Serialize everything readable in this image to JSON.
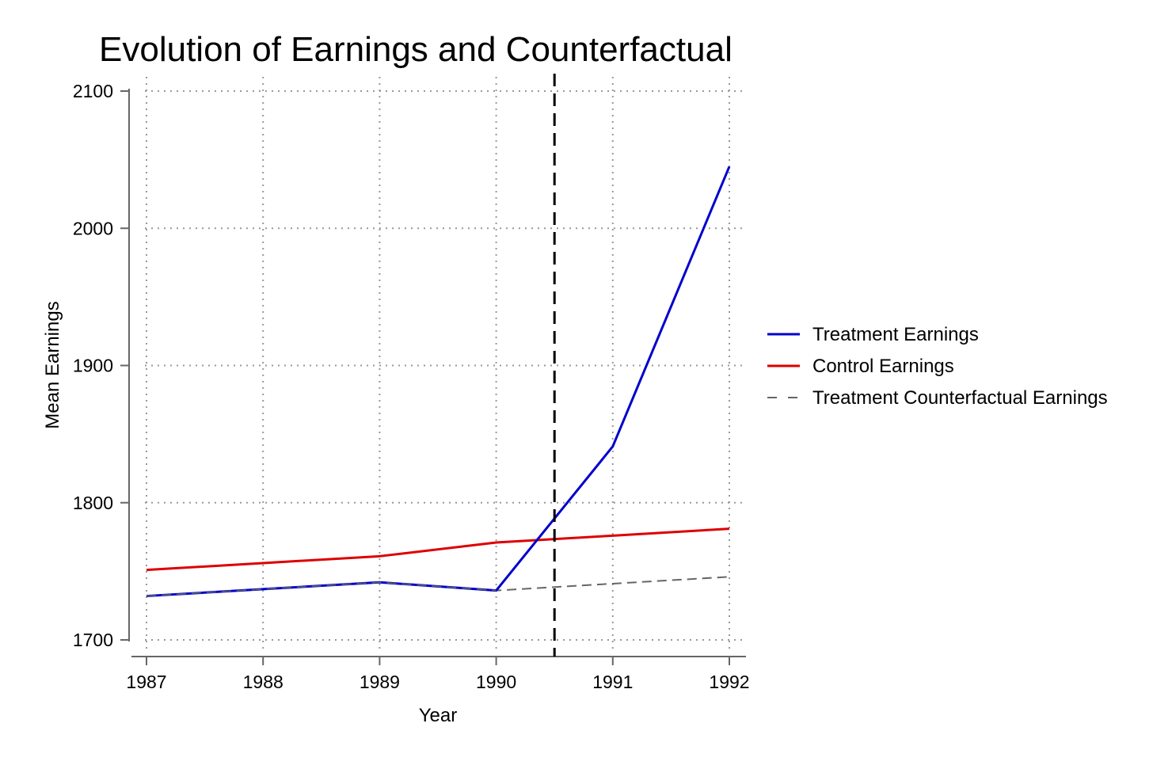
{
  "chart_data": {
    "type": "line",
    "title": "Evolution of Earnings and Counterfactual",
    "xlabel": "Year",
    "ylabel": "Mean Earnings",
    "x": [
      1987,
      1988,
      1989,
      1990,
      1991,
      1992
    ],
    "xlim": [
      1987,
      1992
    ],
    "ylim": [
      1700,
      2100
    ],
    "x_ticks": [
      "1987",
      "1988",
      "1989",
      "1990",
      "1991",
      "1992"
    ],
    "y_ticks": [
      "1700",
      "1800",
      "1900",
      "2000",
      "2100"
    ],
    "grid": "dotted",
    "legend_position": "right",
    "series": [
      {
        "name": "Treatment Earnings",
        "color": "#0000cc",
        "style": "solid",
        "x": [
          1987,
          1988,
          1989,
          1990,
          1991,
          1992
        ],
        "values": [
          1732,
          1737,
          1742,
          1736,
          1841,
          2045
        ]
      },
      {
        "name": "Control Earnings",
        "color": "#dd0000",
        "style": "solid",
        "x": [
          1987,
          1988,
          1989,
          1990,
          1991,
          1992
        ],
        "values": [
          1751,
          1756,
          1761,
          1771,
          1776,
          1781
        ]
      },
      {
        "name": "Treatment Counterfactual Earnings",
        "color": "#666666",
        "style": "dashed",
        "x": [
          1987,
          1988,
          1989,
          1990,
          1991,
          1992
        ],
        "values": [
          1732,
          1737,
          1742,
          1736,
          1741,
          1746
        ]
      }
    ],
    "reference_line": {
      "x": 1990.5,
      "color": "#000000",
      "style": "dashed"
    }
  }
}
